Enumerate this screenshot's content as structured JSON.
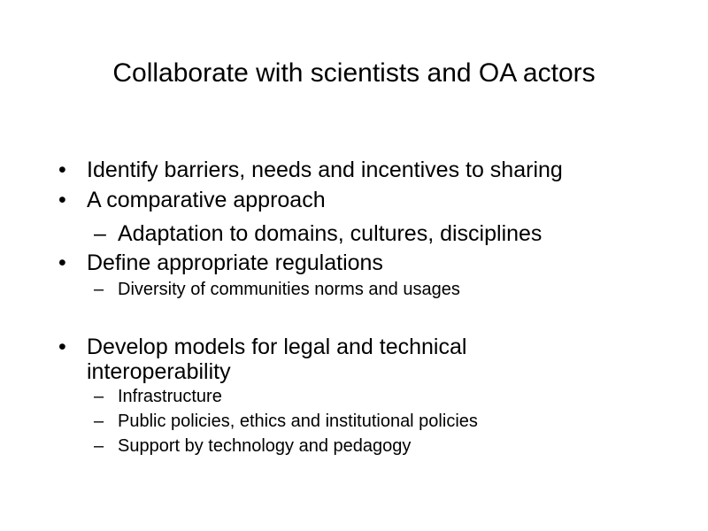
{
  "slide": {
    "title": "Collaborate with scientists and OA actors",
    "bullet_symbol": "•",
    "dash_symbol": "–",
    "items": [
      {
        "text": "Identify barriers, needs and incentives to sharing"
      },
      {
        "text": "A comparative approach"
      },
      {
        "text": "Adaptation to domains, cultures, disciplines"
      },
      {
        "text": "Define appropriate regulations"
      },
      {
        "text": "Diversity of communities norms and usages"
      },
      {
        "text": "Develop models for legal and technical interoperability"
      },
      {
        "text": "Infrastructure"
      },
      {
        "text": "Public policies, ethics and institutional policies"
      },
      {
        "text": "Support by technology and pedagogy"
      }
    ]
  }
}
